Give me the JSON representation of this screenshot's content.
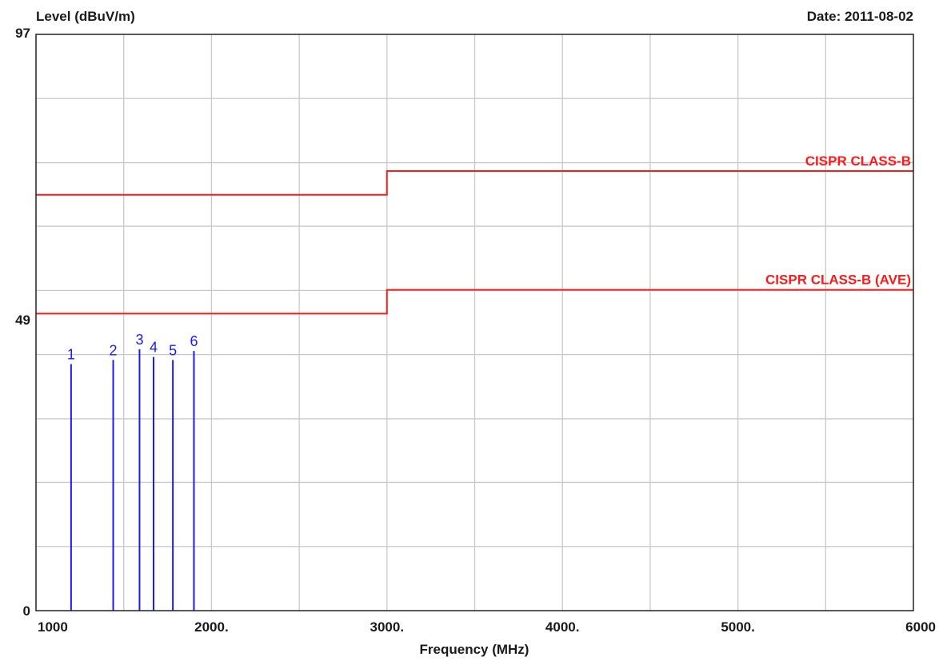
{
  "header": {
    "ylabel": "Level (dBuV/m)",
    "date": "Date: 2011-08-02"
  },
  "chart_data": {
    "type": "line",
    "title": "",
    "xlabel": "Frequency (MHz)",
    "ylabel": "Level (dBuV/m)",
    "xlim": [
      1000,
      6000
    ],
    "ylim": [
      0,
      97
    ],
    "x_ticks": [
      {
        "value": 1000,
        "label": "1000"
      },
      {
        "value": 2000,
        "label": "2000."
      },
      {
        "value": 3000,
        "label": "3000."
      },
      {
        "value": 4000,
        "label": "4000."
      },
      {
        "value": 5000,
        "label": "5000."
      },
      {
        "value": 6000,
        "label": "6000"
      }
    ],
    "x_grid_step": 500,
    "y_ticks": [
      {
        "value": 97,
        "label": "97"
      },
      {
        "value": 49,
        "label": "49"
      },
      {
        "value": 0,
        "label": "0"
      }
    ],
    "y_gridlines": [
      0,
      10.8,
      21.6,
      32.3,
      43.1,
      53.9,
      64.7,
      75.4,
      86.2,
      97
    ],
    "grid": true,
    "limit_lines": [
      {
        "name": "CISPR CLASS-B",
        "color": "#ff1a1a",
        "points": [
          [
            1000,
            70
          ],
          [
            3000,
            70
          ],
          [
            3000,
            74
          ],
          [
            6000,
            74
          ]
        ]
      },
      {
        "name": "CISPR CLASS-B (AVE)",
        "color": "#ff1a1a",
        "points": [
          [
            1000,
            50
          ],
          [
            3000,
            50
          ],
          [
            3000,
            54
          ],
          [
            6000,
            54
          ]
        ]
      }
    ],
    "markers": {
      "color": "#1a1aff",
      "points": [
        {
          "label": "1",
          "freq": 1200,
          "level": 41.5
        },
        {
          "label": "2",
          "freq": 1440,
          "level": 42.2
        },
        {
          "label": "3",
          "freq": 1590,
          "level": 44.0
        },
        {
          "label": "4",
          "freq": 1670,
          "level": 42.7
        },
        {
          "label": "5",
          "freq": 1780,
          "level": 42.2
        },
        {
          "label": "6",
          "freq": 1900,
          "level": 43.7
        }
      ]
    }
  }
}
